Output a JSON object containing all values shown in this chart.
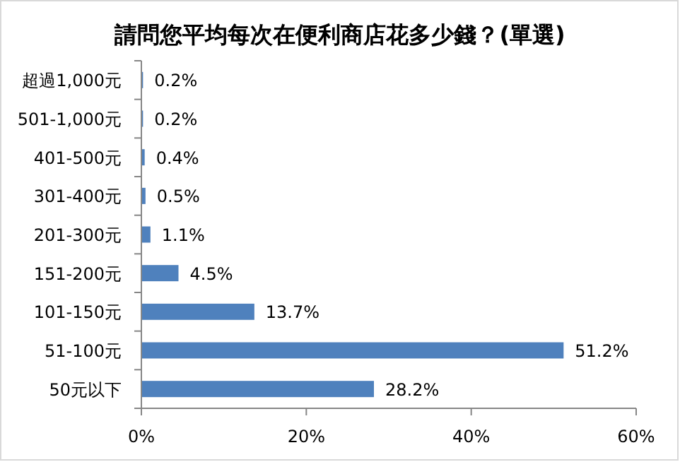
{
  "chart_data": {
    "type": "bar",
    "orientation": "horizontal",
    "title": "請問您平均每次在便利商店花多少錢？(單選)",
    "categories": [
      "超過1,000元",
      "501-1,000元",
      "401-500元",
      "301-400元",
      "201-300元",
      "151-200元",
      "101-150元",
      "51-100元",
      "50元以下"
    ],
    "values": [
      0.2,
      0.2,
      0.4,
      0.5,
      1.1,
      4.5,
      13.7,
      51.2,
      28.2
    ],
    "value_labels": [
      "0.2%",
      "0.2%",
      "0.4%",
      "0.5%",
      "1.1%",
      "4.5%",
      "13.7%",
      "51.2%",
      "28.2%"
    ],
    "color": "#4f81bd",
    "xlim": [
      0,
      60
    ],
    "xticks": [
      {
        "value": 0,
        "label": "0%"
      },
      {
        "value": 20,
        "label": "20%"
      },
      {
        "value": 40,
        "label": "40%"
      },
      {
        "value": 60,
        "label": "60%"
      }
    ],
    "grid": false
  }
}
